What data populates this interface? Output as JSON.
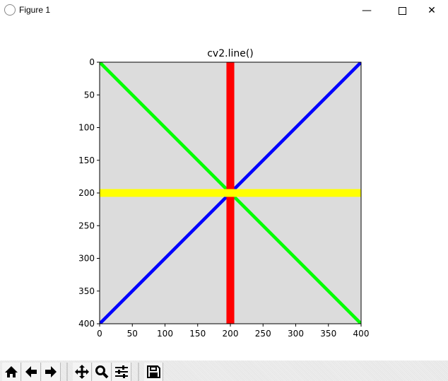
{
  "window": {
    "title": "Figure 1",
    "icon": "matplotlib-icon",
    "controls": [
      "minimize-icon",
      "maximize-icon",
      "close-icon"
    ]
  },
  "chart_data": {
    "type": "image",
    "title": "cv2.line()",
    "xlim": [
      0,
      400
    ],
    "ylim": [
      400,
      0
    ],
    "xticks": [
      0,
      50,
      100,
      150,
      200,
      250,
      300,
      350,
      400
    ],
    "yticks": [
      0,
      50,
      100,
      150,
      200,
      250,
      300,
      350,
      400
    ],
    "background": "#dcdcdc",
    "lines": [
      {
        "from": [
          0,
          0
        ],
        "to": [
          400,
          400
        ],
        "color": "#00ff00",
        "thickness": 5
      },
      {
        "from": [
          0,
          400
        ],
        "to": [
          400,
          0
        ],
        "color": "#0000ff",
        "thickness": 5
      },
      {
        "from": [
          200,
          0
        ],
        "to": [
          200,
          400
        ],
        "color": "#ff0000",
        "thickness": 12
      },
      {
        "from": [
          0,
          200
        ],
        "to": [
          400,
          200
        ],
        "color": "#ffff00",
        "thickness": 12
      }
    ]
  },
  "toolbar": {
    "buttons": [
      "home-icon",
      "back-icon",
      "forward-icon",
      "pan-icon",
      "zoom-icon",
      "configure-subplots-icon",
      "save-icon"
    ]
  }
}
